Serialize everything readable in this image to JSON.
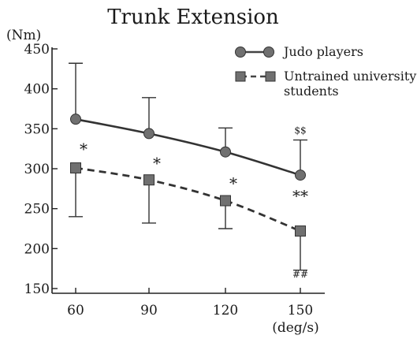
{
  "chart_data": {
    "type": "line",
    "title": "Trunk Extension",
    "ylabel": "(Nm)",
    "xlabel": "(deg/s)",
    "x": [
      60,
      90,
      120,
      150
    ],
    "x_tick_labels": [
      "60",
      "90",
      "120",
      "150"
    ],
    "ylim": [
      150,
      450
    ],
    "y_ticks": [
      150,
      200,
      250,
      300,
      350,
      400,
      450
    ],
    "y_tick_labels": [
      "150",
      "200",
      "250",
      "300",
      "350",
      "400",
      "450"
    ],
    "grid": false,
    "legend_position": "top-right",
    "series": [
      {
        "name": "Judo players",
        "style": "solid",
        "marker": "circle",
        "color": "#555555",
        "values": [
          362,
          344,
          321,
          292
        ],
        "error_upper": [
          432,
          389,
          351,
          336
        ]
      },
      {
        "name": "Untrained university students",
        "name_line1": "Untrained university",
        "name_line2": "students",
        "style": "dashed",
        "marker": "square",
        "color": "#555555",
        "values": [
          301,
          286,
          260,
          222
        ],
        "error_lower": [
          240,
          232,
          225,
          173
        ]
      }
    ],
    "annotations": [
      {
        "text": "*",
        "x": 60,
        "y": 318
      },
      {
        "text": "*",
        "x": 90,
        "y": 300
      },
      {
        "text": "*",
        "x": 120,
        "y": 275
      },
      {
        "text": "**",
        "x": 150,
        "y": 259
      },
      {
        "text": "$$",
        "x": 150,
        "y": 344
      },
      {
        "text": "##",
        "x": 150,
        "y": 164
      }
    ]
  }
}
